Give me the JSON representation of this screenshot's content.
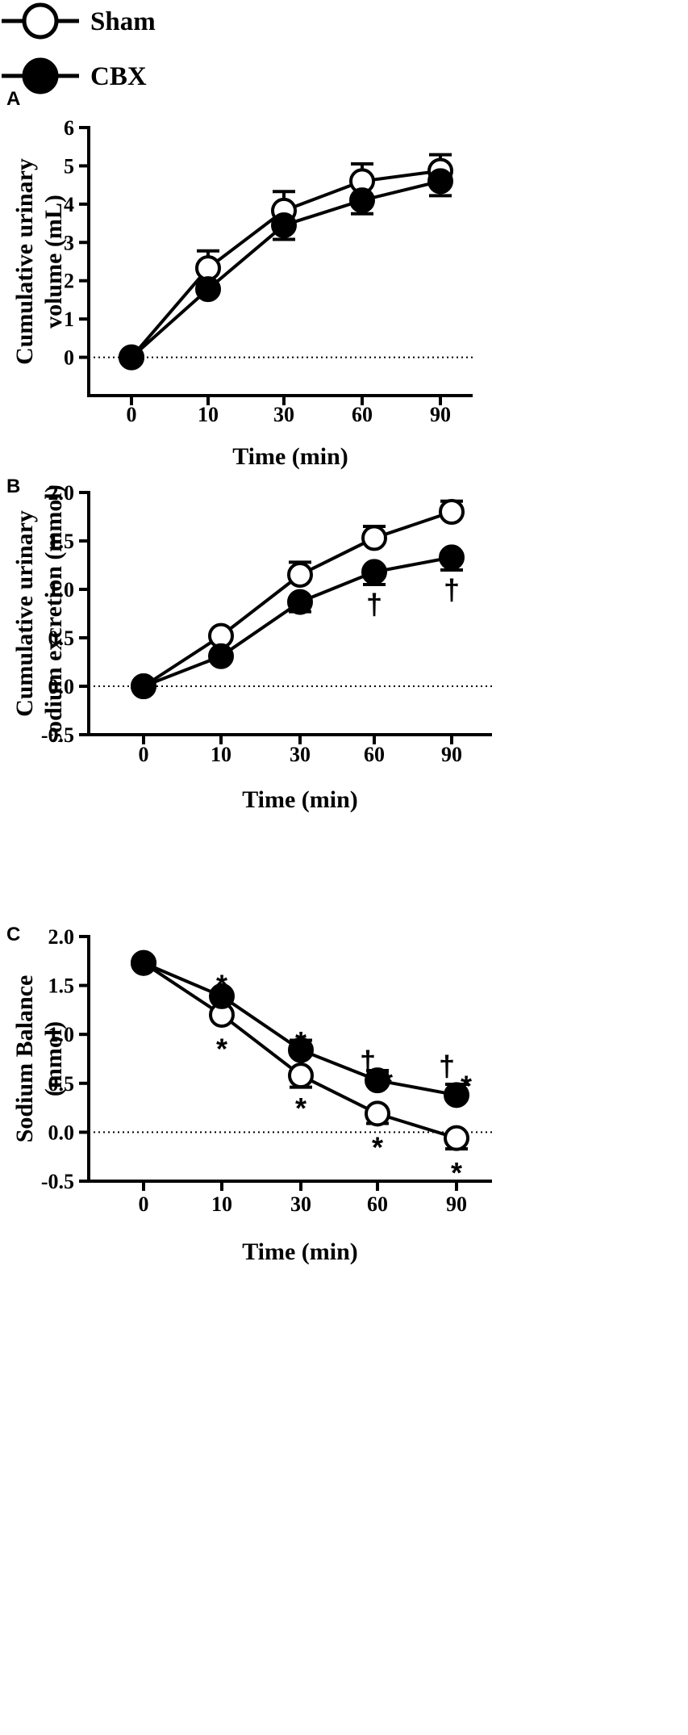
{
  "legend": {
    "entries": [
      {
        "name": "Sham",
        "fill": "#ffffff"
      },
      {
        "name": "CBX",
        "fill": "#000000"
      }
    ]
  },
  "colors": {
    "ink": "#000000",
    "open_marker": "#ffffff",
    "filled_marker": "#000000"
  },
  "chart_data": [
    {
      "panel": "A",
      "type": "line",
      "title": "",
      "xlabel": "Time (min)",
      "ylabel": [
        "Cumulative urinary",
        "volume (mL)"
      ],
      "categories": [
        "0",
        "10",
        "30",
        "60",
        "90"
      ],
      "ylim": [
        -1,
        6
      ],
      "yticks": [
        "0",
        "1",
        "2",
        "3",
        "4",
        "5",
        "6"
      ],
      "ytick_values": [
        0,
        1,
        2,
        3,
        4,
        5,
        6
      ],
      "reference_line": 0,
      "series": [
        {
          "name": "Sham",
          "values": [
            0,
            2.33,
            3.83,
            4.6,
            4.87
          ],
          "err": [
            0,
            0.45,
            0.5,
            0.45,
            0.42
          ],
          "err_dir": "up"
        },
        {
          "name": "CBX",
          "values": [
            0,
            1.78,
            3.45,
            4.1,
            4.6
          ],
          "err": [
            0,
            0,
            0.37,
            0.35,
            0.38
          ],
          "err_dir": "down"
        }
      ],
      "annotations": []
    },
    {
      "panel": "B",
      "type": "line",
      "title": "",
      "xlabel": "Time (min)",
      "ylabel": [
        "Cumulative urinary",
        "sodium excretion (mmol)"
      ],
      "categories": [
        "0",
        "10",
        "30",
        "60",
        "90"
      ],
      "ylim": [
        -0.5,
        2.0
      ],
      "yticks": [
        "-0.5",
        "0.0",
        "0.5",
        "1.0",
        "1.5",
        "2.0"
      ],
      "ytick_values": [
        -0.5,
        0.0,
        0.5,
        1.0,
        1.5,
        2.0
      ],
      "reference_line": 0,
      "series": [
        {
          "name": "Sham",
          "values": [
            0,
            0.52,
            1.15,
            1.53,
            1.8
          ],
          "err": [
            0,
            0,
            0.13,
            0.12,
            0.11
          ],
          "err_dir": "up"
        },
        {
          "name": "CBX",
          "values": [
            0,
            0.31,
            0.87,
            1.18,
            1.33
          ],
          "err": [
            0,
            0,
            0.1,
            0.13,
            0.13
          ],
          "err_dir": "down"
        }
      ],
      "annotations": [
        {
          "category": "60",
          "value": 0.84,
          "text": "†"
        },
        {
          "category": "90",
          "value": 0.99,
          "text": "†"
        }
      ]
    },
    {
      "panel": "C",
      "type": "line",
      "title": "",
      "xlabel": "Time (min)",
      "ylabel": [
        "Sodium Balance",
        "(mmol)"
      ],
      "categories": [
        "0",
        "10",
        "30",
        "60",
        "90"
      ],
      "ylim": [
        -0.5,
        2.0
      ],
      "yticks": [
        "-0.5",
        "0.0",
        "0.5",
        "1.0",
        "1.5",
        "2.0"
      ],
      "ytick_values": [
        -0.5,
        0.0,
        0.5,
        1.0,
        1.5,
        2.0
      ],
      "reference_line": 0,
      "series": [
        {
          "name": "Sham",
          "values": [
            1.73,
            1.2,
            0.58,
            0.19,
            -0.06
          ],
          "err": [
            0,
            0,
            0.12,
            0.1,
            0.11
          ],
          "err_dir": "down"
        },
        {
          "name": "CBX",
          "values": [
            1.73,
            1.39,
            0.84,
            0.53,
            0.38
          ],
          "err": [
            0,
            0,
            0.1,
            0.1,
            0.11
          ],
          "err_dir": "up"
        }
      ],
      "annotations": [
        {
          "category": "10",
          "value": 1.6,
          "text": "*"
        },
        {
          "category": "10",
          "value": 0.95,
          "text": "*"
        },
        {
          "category": "30",
          "value": 1.02,
          "text": "*"
        },
        {
          "category": "30",
          "value": 0.34,
          "text": "*"
        },
        {
          "category": "60",
          "value": 0.72,
          "text": "†"
        },
        {
          "category": "60",
          "value": 0.61,
          "text": "*",
          "dx": 0.3
        },
        {
          "category": "60",
          "value": -0.06,
          "text": "*"
        },
        {
          "category": "90",
          "value": 0.67,
          "text": "†"
        },
        {
          "category": "90",
          "value": 0.57,
          "text": "*",
          "dx": 0.3
        },
        {
          "category": "90",
          "value": -0.32,
          "text": "*"
        }
      ]
    }
  ]
}
